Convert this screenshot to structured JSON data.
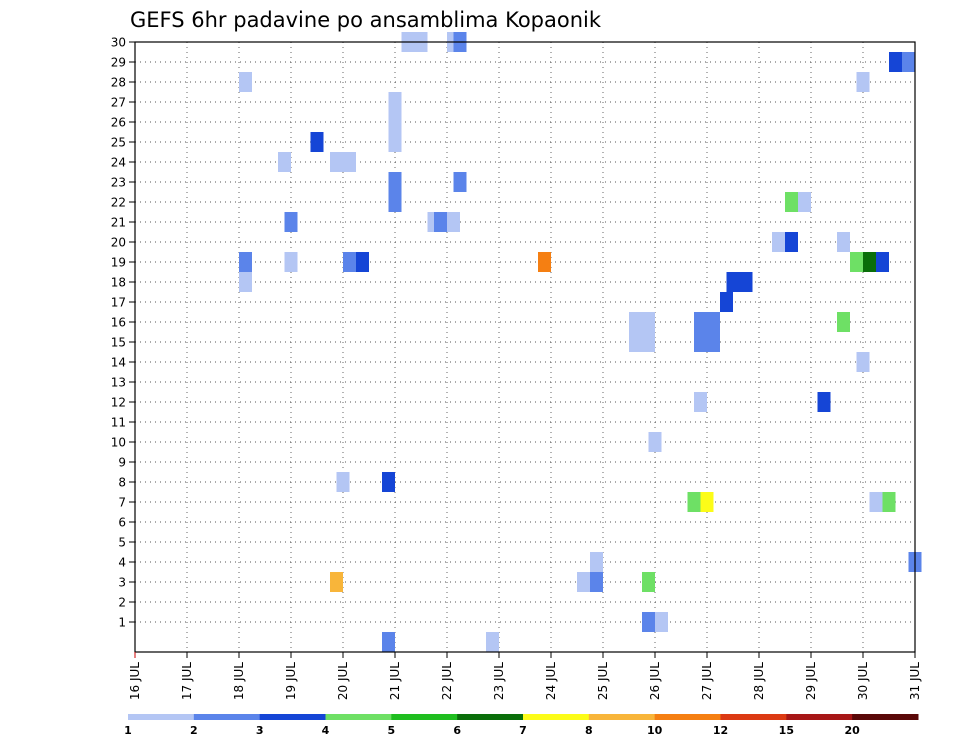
{
  "chart_data": {
    "type": "heatmap",
    "title": "GEFS 6hr padavine po ansamblima Kopaonik",
    "xlabel": "",
    "ylabel": "",
    "x_tick_labels": [
      "16 JUL",
      "17 JUL",
      "18 JUL",
      "19 JUL",
      "20 JUL",
      "21 JUL",
      "22 JUL",
      "23 JUL",
      "24 JUL",
      "25 JUL",
      "26 JUL",
      "27 JUL",
      "28 JUL",
      "29 JUL",
      "30 JUL",
      "31 JUL"
    ],
    "y_tick_labels": [
      "1",
      "2",
      "3",
      "4",
      "5",
      "6",
      "7",
      "8",
      "9",
      "10",
      "11",
      "12",
      "13",
      "14",
      "15",
      "16",
      "17",
      "18",
      "19",
      "20",
      "21",
      "22",
      "23",
      "24",
      "25",
      "26",
      "27",
      "28",
      "29",
      "30"
    ],
    "xlim": [
      0,
      60
    ],
    "ylim": [
      0,
      30
    ],
    "grid": true,
    "colorbar": {
      "levels": [
        "1",
        "2",
        "3",
        "4",
        "5",
        "6",
        "7",
        "8",
        "10",
        "12",
        "15",
        "20"
      ],
      "colors": [
        "#b4c6f4",
        "#5b84ea",
        "#1545d6",
        "#6ee065",
        "#1fbe1f",
        "#0a6e0a",
        "#fcfc18",
        "#f8b53a",
        "#f57f12",
        "#dc3a13",
        "#a71616",
        "#5a0808"
      ]
    },
    "cells": [
      {
        "t": 21.0,
        "m": 30,
        "c": 1
      },
      {
        "t": 22.0,
        "m": 30,
        "c": 1
      },
      {
        "t": 24.5,
        "m": 30,
        "c": 1
      },
      {
        "t": 25.0,
        "m": 30,
        "c": 2
      },
      {
        "t": 58.5,
        "m": 29,
        "c": 3
      },
      {
        "t": 59.5,
        "m": 29,
        "c": 2
      },
      {
        "t": 8.5,
        "m": 28,
        "c": 1
      },
      {
        "t": 56.0,
        "m": 28,
        "c": 1
      },
      {
        "t": 20.0,
        "m": 27,
        "c": 1
      },
      {
        "t": 20.0,
        "m": 26,
        "c": 1
      },
      {
        "t": 14.0,
        "m": 25,
        "c": 3
      },
      {
        "t": 20.0,
        "m": 25,
        "c": 1
      },
      {
        "t": 11.5,
        "m": 24,
        "c": 1
      },
      {
        "t": 15.5,
        "m": 24,
        "c": 1
      },
      {
        "t": 16.5,
        "m": 24,
        "c": 1
      },
      {
        "t": 20.0,
        "m": 23,
        "c": 2
      },
      {
        "t": 25.0,
        "m": 23,
        "c": 2
      },
      {
        "t": 25.0,
        "m": 23,
        "c": 2
      },
      {
        "t": 20.0,
        "m": 22,
        "c": 2
      },
      {
        "t": 50.5,
        "m": 22,
        "c": 4
      },
      {
        "t": 51.5,
        "m": 22,
        "c": 1
      },
      {
        "t": 12.0,
        "m": 21,
        "c": 2
      },
      {
        "t": 23.0,
        "m": 21,
        "c": 1
      },
      {
        "t": 23.5,
        "m": 21,
        "c": 2
      },
      {
        "t": 24.5,
        "m": 21,
        "c": 1
      },
      {
        "t": 49.5,
        "m": 20,
        "c": 1
      },
      {
        "t": 50.5,
        "m": 20,
        "c": 3
      },
      {
        "t": 54.5,
        "m": 20,
        "c": 1
      },
      {
        "t": 8.5,
        "m": 19,
        "c": 2
      },
      {
        "t": 12.0,
        "m": 19,
        "c": 1
      },
      {
        "t": 16.5,
        "m": 19,
        "c": 2
      },
      {
        "t": 17.5,
        "m": 19,
        "c": 3
      },
      {
        "t": 31.5,
        "m": 19,
        "c": 9
      },
      {
        "t": 55.5,
        "m": 19,
        "c": 4
      },
      {
        "t": 56.5,
        "m": 19,
        "c": 6
      },
      {
        "t": 57.5,
        "m": 19,
        "c": 3
      },
      {
        "t": 8.5,
        "m": 18,
        "c": 1
      },
      {
        "t": 46.0,
        "m": 18,
        "c": 3
      },
      {
        "t": 47.0,
        "m": 18,
        "c": 3
      },
      {
        "t": 45.5,
        "m": 17,
        "c": 3
      },
      {
        "t": 38.5,
        "m": 16,
        "c": 1
      },
      {
        "t": 39.5,
        "m": 16,
        "c": 1
      },
      {
        "t": 43.5,
        "m": 16,
        "c": 2
      },
      {
        "t": 44.5,
        "m": 16,
        "c": 2
      },
      {
        "t": 54.5,
        "m": 16,
        "c": 4
      },
      {
        "t": 38.5,
        "m": 15,
        "c": 1
      },
      {
        "t": 39.5,
        "m": 15,
        "c": 1
      },
      {
        "t": 43.5,
        "m": 15,
        "c": 2
      },
      {
        "t": 44.5,
        "m": 15,
        "c": 2
      },
      {
        "t": 56.0,
        "m": 14,
        "c": 1
      },
      {
        "t": 43.5,
        "m": 12,
        "c": 1
      },
      {
        "t": 53.0,
        "m": 12,
        "c": 3
      },
      {
        "t": 40.0,
        "m": 10,
        "c": 1
      },
      {
        "t": 16.0,
        "m": 8,
        "c": 1
      },
      {
        "t": 19.5,
        "m": 8,
        "c": 3
      },
      {
        "t": 43.0,
        "m": 7,
        "c": 4
      },
      {
        "t": 44.0,
        "m": 7,
        "c": 7
      },
      {
        "t": 57.0,
        "m": 7,
        "c": 1
      },
      {
        "t": 58.0,
        "m": 7,
        "c": 4
      },
      {
        "t": 35.5,
        "m": 4,
        "c": 1
      },
      {
        "t": 60.0,
        "m": 4,
        "c": 2
      },
      {
        "t": 15.5,
        "m": 3,
        "c": 8
      },
      {
        "t": 34.5,
        "m": 3,
        "c": 1
      },
      {
        "t": 35.5,
        "m": 3,
        "c": 2
      },
      {
        "t": 39.5,
        "m": 3,
        "c": 4
      },
      {
        "t": 39.5,
        "m": 1,
        "c": 2
      },
      {
        "t": 40.5,
        "m": 1,
        "c": 1
      },
      {
        "t": 19.5,
        "m": 0,
        "c": 2
      },
      {
        "t": 27.5,
        "m": 0,
        "c": 1
      }
    ]
  }
}
